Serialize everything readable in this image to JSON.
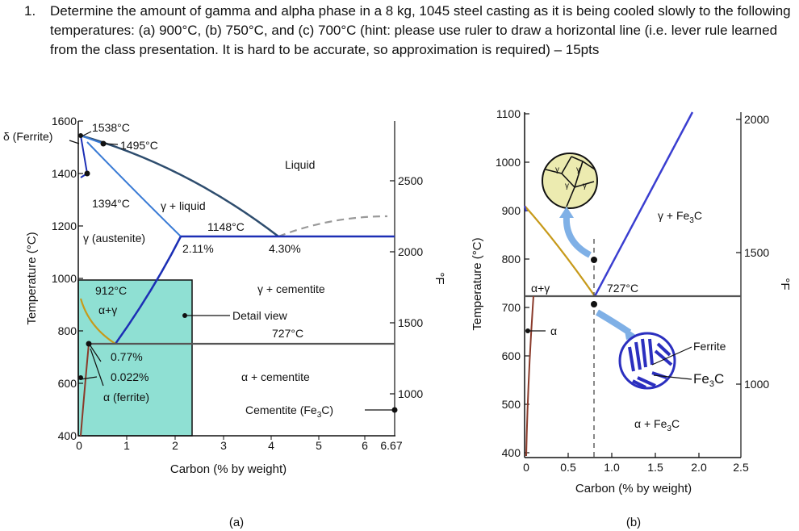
{
  "question": {
    "number": "1.",
    "text": "Determine the amount of gamma and alpha phase in a 8 kg, 1045 steel casting as it is being cooled slowly to the following temperatures: (a) 900°C, (b) 750°C, and (c) 700°C  (hint: please use ruler to draw a horizontal line (i.e. lever rule learned from the class presentation. It is hard to be accurate, so approximation is required) – 15pts"
  },
  "figure_a": {
    "caption": "(a)",
    "xlabel": "Carbon (% by weight)",
    "ylabel": "Temperature (°C)",
    "right_unit": "°F",
    "x_ticks": [
      "0",
      "1",
      "2",
      "3",
      "4",
      "5",
      "6",
      "6.67"
    ],
    "y_ticks": [
      "400",
      "600",
      "800",
      "1000",
      "1200",
      "1400",
      "1600"
    ],
    "f_ticks": [
      "1000",
      "1500",
      "2000",
      "2500"
    ],
    "labels": {
      "ferrite_delta": "δ (Ferrite)",
      "t1538": "1538°C",
      "t1495": "1495°C",
      "liquid": "Liquid",
      "t1394": "1394°C",
      "gamma_liquid": "γ + liquid",
      "t1148": "1148°C",
      "austenite": "γ (austenite)",
      "c211": "2.11%",
      "c430": "4.30%",
      "t912": "912°C",
      "alpha_gamma": "α+γ",
      "gamma_cementite": "γ + cementite",
      "detail_view": "Detail view",
      "t727": "727°C",
      "c077": "0.77%",
      "c0022": "0.022%",
      "alpha_ferrite": "α (ferrite)",
      "alpha_cementite": "α + cementite",
      "cementite": "Cementite (Fe",
      "cementite_sub": "3",
      "cementite_end": "C)"
    }
  },
  "figure_b": {
    "caption": "(b)",
    "xlabel": "Carbon (% by weight)",
    "ylabel": "Temperature (°C)",
    "right_unit": "°F",
    "x_ticks": [
      "0",
      "0.5",
      "1.0",
      "1.5",
      "2.0",
      "2.5"
    ],
    "y_ticks": [
      "400",
      "500",
      "600",
      "700",
      "800",
      "900",
      "1000",
      "1100"
    ],
    "f_ticks": [
      "1000",
      "1500",
      "2000"
    ],
    "labels": {
      "gamma_fe3c": "γ + Fe",
      "gamma_fe3c_sub": "3",
      "gamma_fe3c_end": "C",
      "alpha_gamma": "α+γ",
      "t727": "727°C",
      "alpha": "α",
      "ferrite": "Ferrite",
      "fe3c": "Fe",
      "fe3c_sub": "3",
      "fe3c_end": "C",
      "alpha_fe3c": "α + Fe",
      "alpha_fe3c_sub": "3",
      "alpha_fe3c_end": "C",
      "grain_gamma": "γ"
    }
  },
  "colors": {
    "liquidus": "#2e4d6e",
    "austenite_line": "#3a7bd5",
    "boundary": "#1c2fb5",
    "alpha_line": "#c79a1a",
    "solvus": "#8a3a2a",
    "detail_fill": "#8fe0d3",
    "eutectoid": "#555555",
    "grain_fill": "#ecebb0",
    "pearlite": "#2b2fbf",
    "arrow": "#7fb0e6"
  }
}
